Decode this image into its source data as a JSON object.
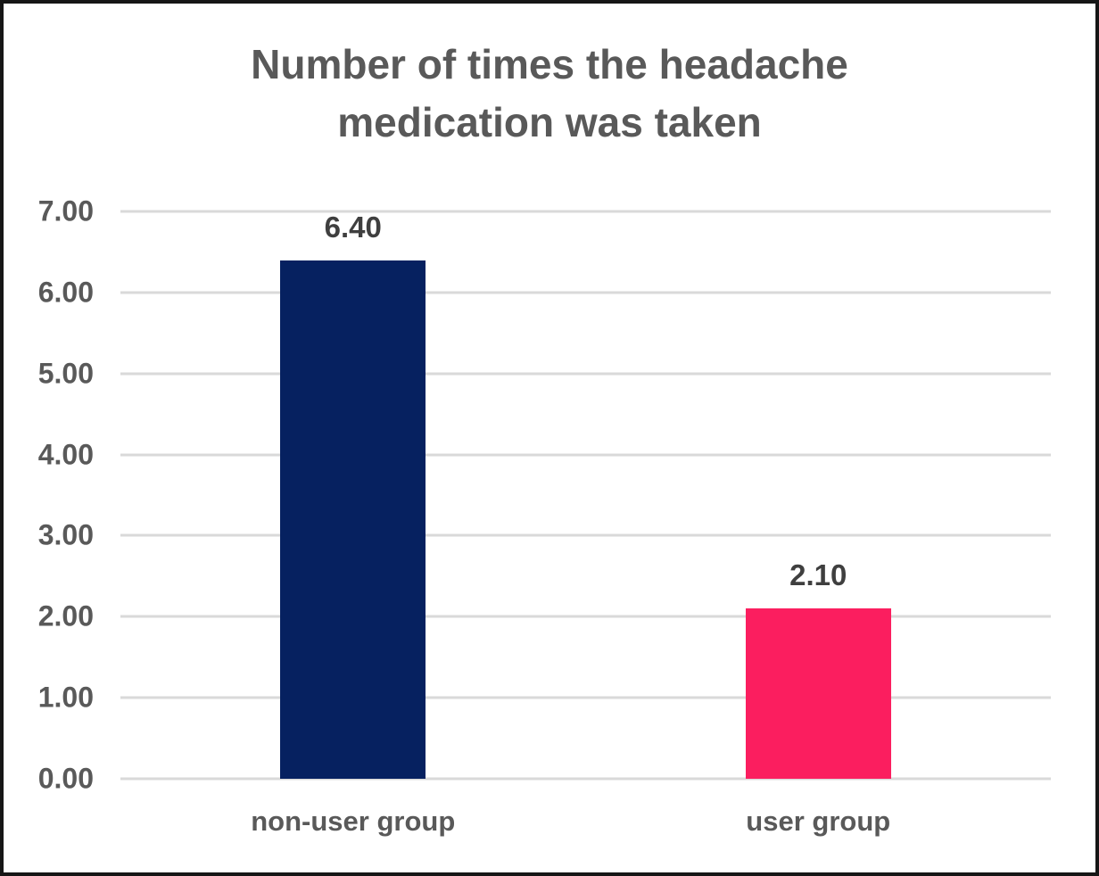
{
  "chart_data": {
    "type": "bar",
    "title": "Number of times the headache medication was taken",
    "categories": [
      "non-user group",
      "user group"
    ],
    "values": [
      6.4,
      2.1
    ],
    "value_labels": [
      "6.40",
      "2.10"
    ],
    "bar_colors": [
      "#062160",
      "#fb1e5f"
    ],
    "xlabel": "",
    "ylabel": "",
    "ylim": [
      0,
      7
    ],
    "ytick_labels": [
      "7.00",
      "6.00",
      "5.00",
      "4.00",
      "3.00",
      "2.00",
      "1.00",
      "0.00"
    ],
    "grid": true,
    "legend": "none",
    "bar_width_pct": 15.6
  },
  "colors": {
    "background": "#ffffff",
    "border": "#161616",
    "title_text": "#595959",
    "axis_text": "#595959",
    "value_label_text": "#3f3f3f",
    "gridline": "#d9d9d9",
    "bar_non_user": "#062160",
    "bar_user": "#fb1e5f"
  }
}
